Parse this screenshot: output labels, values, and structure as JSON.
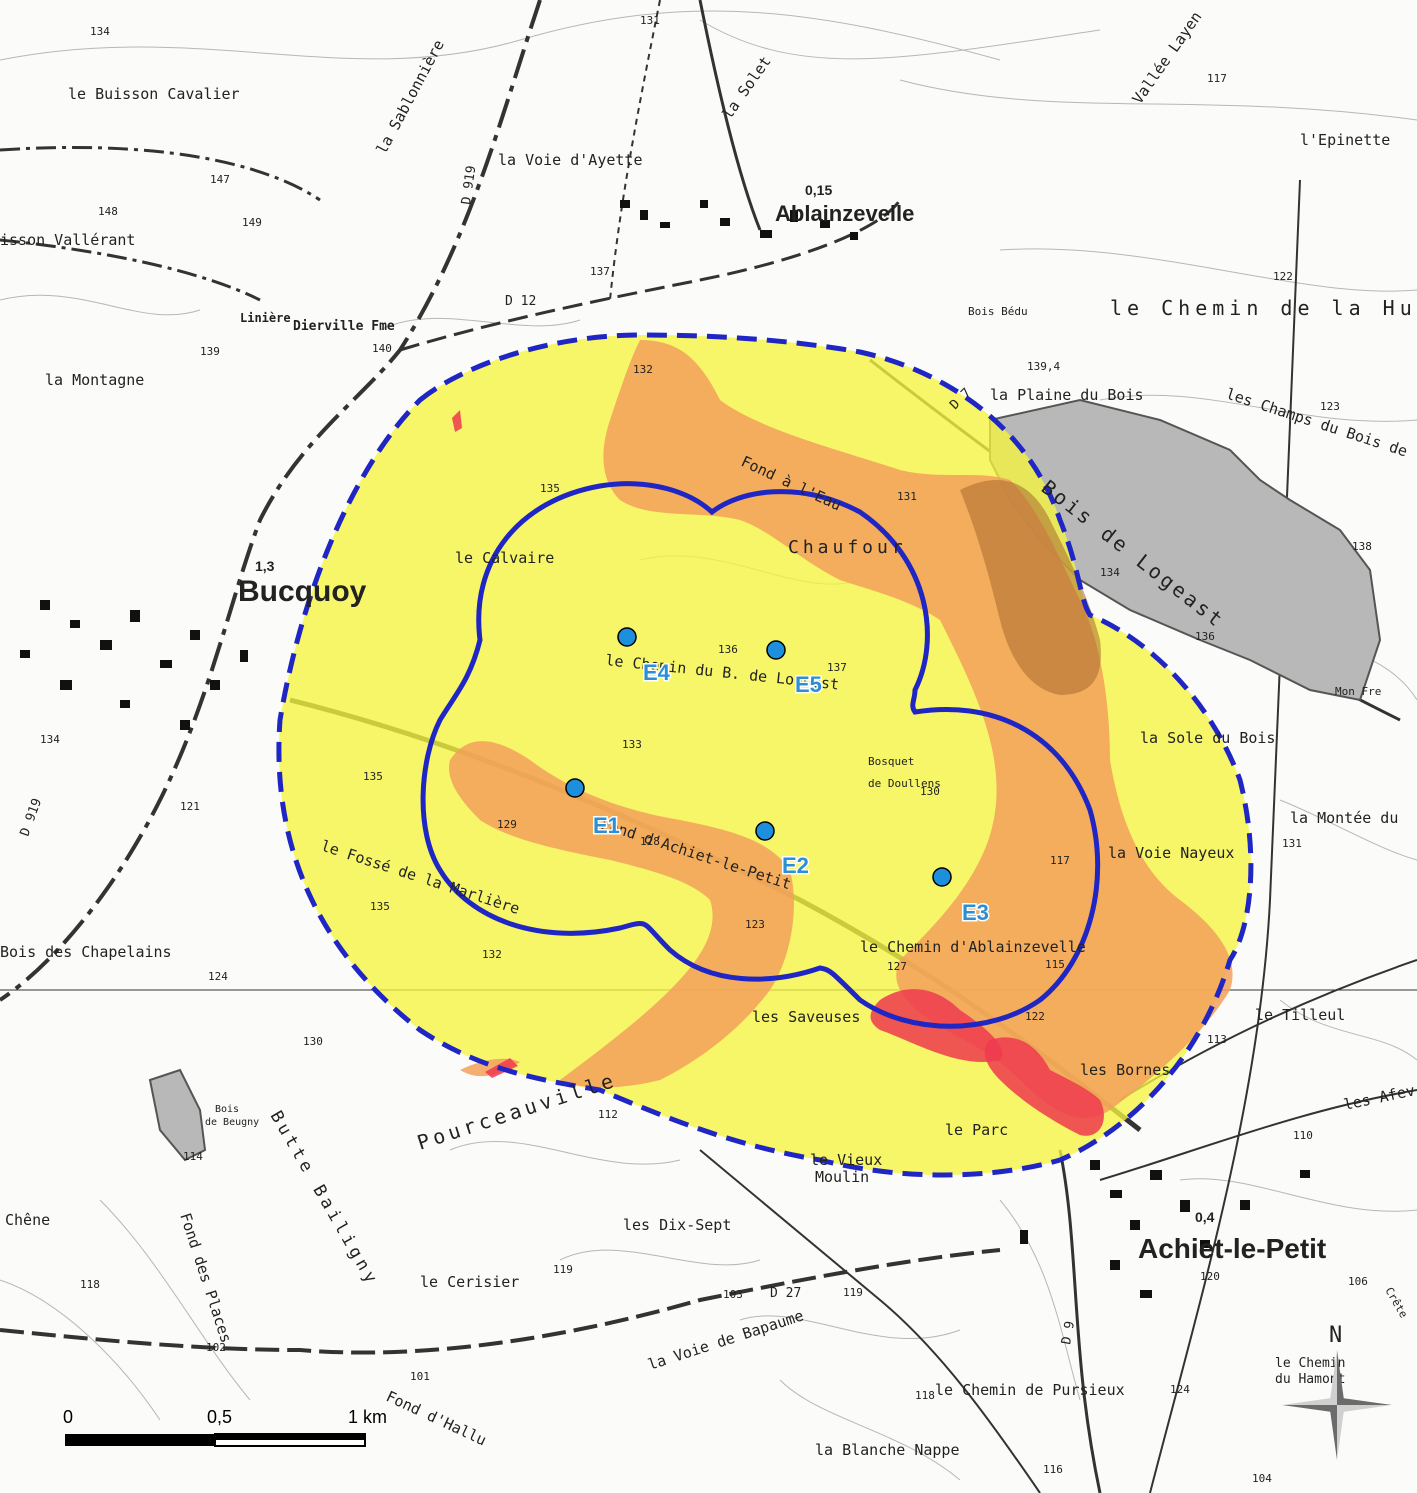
{
  "map": {
    "place_labels": [
      {
        "text": "le Buisson Cavalier"
      },
      {
        "text": "isson Vallérant"
      },
      {
        "text": "la Montagne"
      },
      {
        "text": "la Voie d'Ayette"
      },
      {
        "text": "la Solet"
      },
      {
        "text": "Vallée Layen"
      },
      {
        "text": "l'Epinette"
      },
      {
        "text": "le Chemin de la Huch"
      },
      {
        "text": "Bois Bédu"
      },
      {
        "text": "la Plaine du Bois"
      },
      {
        "text": "les Champs du Bois de"
      },
      {
        "text": "Bois de Logeast"
      },
      {
        "text": "Fond à l'Eau"
      },
      {
        "text": "Chaufour"
      },
      {
        "text": "le Calvaire"
      },
      {
        "text": "le Chemin du B. de Logeast"
      },
      {
        "text": "la Sole du Bois"
      },
      {
        "text": "Bosquet"
      },
      {
        "text": "de Doullens"
      },
      {
        "text": "la Montée du"
      },
      {
        "text": "la Voie Nayeux"
      },
      {
        "text": "Fond d'Achiet-le-Petit"
      },
      {
        "text": "le Fossé de la Marlière"
      },
      {
        "text": "Bois des Chapelains"
      },
      {
        "text": "le Chemin d'Ablainzevelle"
      },
      {
        "text": "le Tilleul"
      },
      {
        "text": "les Saveuses"
      },
      {
        "text": "les Bornes"
      },
      {
        "text": "Pourceauville"
      },
      {
        "text": "Butte Bailigny"
      },
      {
        "text": "le Parc"
      },
      {
        "text": "les Afev"
      },
      {
        "text": "le Vieux"
      },
      {
        "text": "Moulin"
      },
      {
        "text": "les Dix-Sept"
      },
      {
        "text": "Fond des Places"
      },
      {
        "text": "Chêne"
      },
      {
        "text": "le Cerisier"
      },
      {
        "text": "la Voie de Bapaume"
      },
      {
        "text": "le Chemin de Pursieux"
      },
      {
        "text": "le Chemin"
      },
      {
        "text": "du Hamont"
      },
      {
        "text": "la Blanche Nappe"
      },
      {
        "text": "Fond d'Hallu"
      },
      {
        "text": "Linière"
      },
      {
        "text": "Dierville Fme"
      },
      {
        "text": "la Sablonnière"
      },
      {
        "text": "Bois"
      },
      {
        "text": "de Beugny"
      },
      {
        "text": "Crête"
      },
      {
        "text": "Mon Fre"
      }
    ],
    "towns": [
      {
        "name": "Ablainzevelle",
        "pop": "0,15"
      },
      {
        "name": "Bucquoy",
        "pop": "1,3"
      },
      {
        "name": "Achiet-le-Petit",
        "pop": "0,4"
      }
    ],
    "road_labels": [
      "D 919",
      "D 12",
      "D 27",
      "D 9",
      "D 7",
      "D 919"
    ],
    "elevations": [
      "134",
      "131",
      "117",
      "147",
      "148",
      "149",
      "139",
      "140",
      "137",
      "122",
      "139,4",
      "123",
      "132",
      "135",
      "131",
      "138",
      "134",
      "136",
      "136",
      "137",
      "133",
      "129",
      "128",
      "130",
      "117",
      "135",
      "134",
      "121",
      "135",
      "132",
      "124",
      "123",
      "127",
      "115",
      "122",
      "130",
      "113",
      "112",
      "114",
      "110",
      "131",
      "119",
      "103",
      "119",
      "120",
      "106",
      "118",
      "102",
      "101",
      "118",
      "124",
      "116",
      "104"
    ]
  },
  "turbines": [
    {
      "id": "E1"
    },
    {
      "id": "E2"
    },
    {
      "id": "E3"
    },
    {
      "id": "E4"
    },
    {
      "id": "E5"
    }
  ],
  "scale": {
    "labels": [
      "0",
      "0,5",
      "1 km"
    ]
  },
  "north_label": "N",
  "colors": {
    "zone_yellow": "#f5f53f",
    "zone_orange": "#f2a05a",
    "zone_red": "#ee3a4d",
    "outline_blue": "#1f26c4",
    "turbine_fill": "#1e8fdc",
    "forest": "#b5b5b5"
  }
}
